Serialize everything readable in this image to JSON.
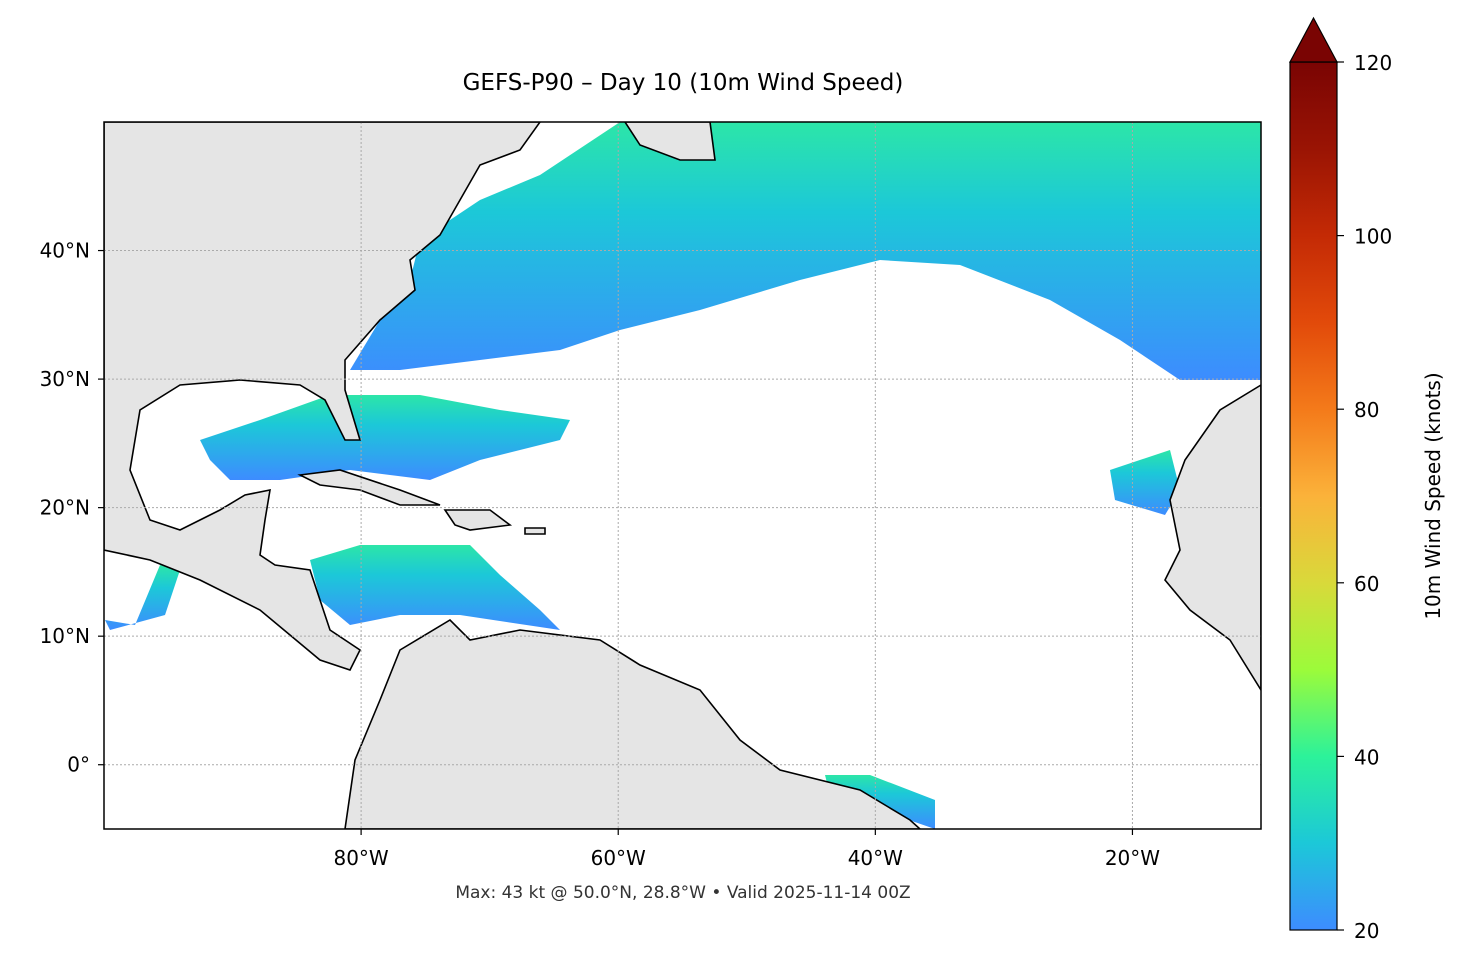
{
  "map": {
    "title": "GEFS-P90 – Day 10 (10m Wind Speed)",
    "footer": "Max: 43 kt @ 50.0°N, 28.8°W • Valid 2025-11-14 00Z",
    "xlim": [
      -100,
      -10
    ],
    "ylim": [
      -5,
      50
    ],
    "xticks": [
      {
        "value": -80,
        "label": "80°W"
      },
      {
        "value": -60,
        "label": "60°W"
      },
      {
        "value": -40,
        "label": "40°W"
      },
      {
        "value": -20,
        "label": "20°W"
      }
    ],
    "yticks": [
      {
        "value": 0,
        "label": "0°"
      },
      {
        "value": 10,
        "label": "10°N"
      },
      {
        "value": 20,
        "label": "20°N"
      },
      {
        "value": 30,
        "label": "30°N"
      },
      {
        "value": 40,
        "label": "40°N"
      }
    ],
    "grid": true
  },
  "colorbar": {
    "label": "10m Wind Speed (knots)",
    "lim": [
      20,
      120
    ],
    "ticks": [
      20,
      40,
      60,
      80,
      100,
      120
    ],
    "colors": [
      "#3d8cff",
      "#1cc8d8",
      "#2cf29a",
      "#9cfb3a",
      "#d9d93a",
      "#fbb23a",
      "#f47a1a",
      "#e24a0a",
      "#c42a05",
      "#9a1404",
      "#7a0403"
    ]
  }
}
